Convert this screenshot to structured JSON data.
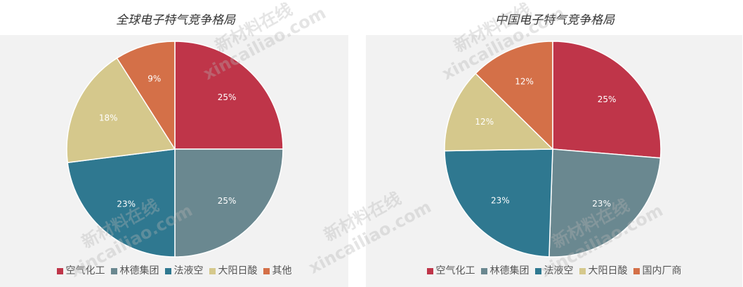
{
  "chart_data": [
    {
      "type": "pie",
      "title": "全球电子特气竞争格局",
      "categories": [
        "空气化工",
        "林德集团",
        "法液空",
        "大阳日酸",
        "其他"
      ],
      "values": [
        25,
        25,
        23,
        18,
        9
      ],
      "labels": [
        "25%",
        "25%",
        "23%",
        "18%",
        "9%"
      ],
      "colors": [
        "#bf3549",
        "#6a8890",
        "#2f7890",
        "#d5c88c",
        "#d47048"
      ],
      "legend_position": "bottom"
    },
    {
      "type": "pie",
      "title": "中国电子特气竞争格局",
      "categories": [
        "空气化工",
        "林德集团",
        "法液空",
        "大阳日酸",
        "国内厂商"
      ],
      "values": [
        25,
        23,
        23,
        12,
        12
      ],
      "labels": [
        "25%",
        "23%",
        "23%",
        "12%",
        "12%"
      ],
      "colors": [
        "#bf3549",
        "#6a8890",
        "#2f7890",
        "#d5c88c",
        "#d47048"
      ],
      "legend_position": "bottom"
    }
  ],
  "watermark": {
    "brand": "新材料在线",
    "domain": "xincailiao.com"
  }
}
